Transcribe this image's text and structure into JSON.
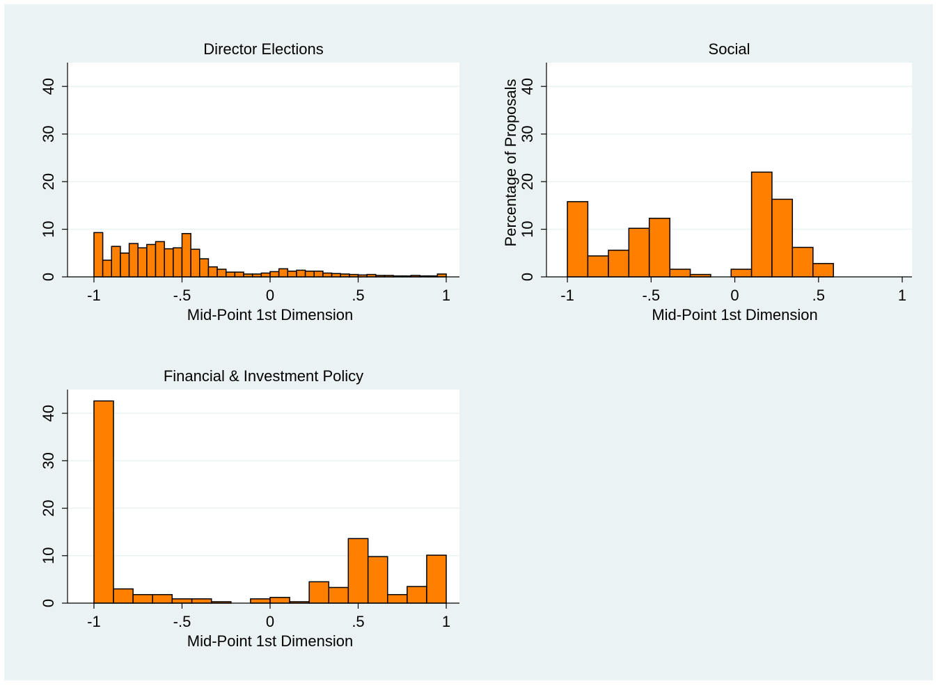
{
  "chart_data": [
    {
      "type": "histogram",
      "title": "Director Elections",
      "xlabel": "Mid-Point 1st Dimension",
      "color": "#ff8000",
      "grid": true,
      "bins": [
        -1,
        -0.95,
        -0.9,
        -0.85,
        -0.8,
        -0.75,
        -0.7,
        -0.65,
        -0.6,
        -0.55,
        -0.5,
        -0.45,
        -0.4,
        -0.35,
        -0.3,
        -0.25,
        -0.2,
        -0.15,
        -0.1,
        -0.05,
        0,
        0.05,
        0.1,
        0.15,
        0.2,
        0.25,
        0.3,
        0.35,
        0.4,
        0.45,
        0.5,
        0.55,
        0.6,
        0.65,
        0.7,
        0.75,
        0.8,
        0.85,
        0.9,
        0.95,
        1
      ],
      "values": [
        9.3,
        3.5,
        6.4,
        5.0,
        7.0,
        6.1,
        6.8,
        7.4,
        5.9,
        6.1,
        9.1,
        5.8,
        3.8,
        2.1,
        1.6,
        1.0,
        1.0,
        0.6,
        0.6,
        0.8,
        1.1,
        1.7,
        1.2,
        1.4,
        1.2,
        1.2,
        0.8,
        0.7,
        0.6,
        0.5,
        0.4,
        0.5,
        0.3,
        0.3,
        0.2,
        0.2,
        0.3,
        0.2,
        0.2,
        0.6
      ],
      "xlim": [
        -1.15,
        1.075
      ],
      "xticks": [
        -1,
        {
          "value": -0.5,
          "label": "-.5"
        },
        0,
        {
          "value": 0.5,
          "label": ".5"
        },
        1
      ],
      "ylim": [
        0,
        45
      ],
      "yticks": [
        0,
        10,
        20,
        30,
        40
      ]
    },
    {
      "type": "histogram",
      "title": "Social",
      "xlabel": "Mid-Point 1st Dimension",
      "ylabel": "Percentage of Proposals",
      "color": "#ff8000",
      "grid": true,
      "bins": [
        -1,
        -0.878,
        -0.755,
        -0.633,
        -0.511,
        -0.388,
        -0.266,
        -0.144,
        -0.022,
        0.1,
        0.222,
        0.344,
        0.467,
        0.589
      ],
      "values": [
        15.8,
        4.4,
        5.6,
        10.2,
        12.3,
        1.6,
        0.5,
        0,
        1.6,
        22.0,
        16.3,
        6.2,
        2.8
      ],
      "xlim": [
        -1.125,
        1.058
      ],
      "xticks": [
        -1,
        {
          "value": -0.5,
          "label": "-.5"
        },
        0,
        {
          "value": 0.5,
          "label": ".5"
        },
        1
      ],
      "ylim": [
        0,
        45
      ],
      "yticks": [
        0,
        10,
        20,
        30,
        40
      ]
    },
    {
      "type": "histogram",
      "title": "Financial & Investment Policy",
      "xlabel": "Mid-Point 1st Dimension",
      "color": "#ff8000",
      "grid": true,
      "bins": [
        -1,
        -0.889,
        -0.778,
        -0.667,
        -0.556,
        -0.444,
        -0.333,
        -0.222,
        -0.111,
        0,
        0.111,
        0.222,
        0.333,
        0.444,
        0.556,
        0.667,
        0.778,
        0.889,
        1
      ],
      "values": [
        42.6,
        3.0,
        1.8,
        1.8,
        0.9,
        0.9,
        0.3,
        0,
        0.9,
        1.2,
        0.3,
        4.5,
        3.3,
        13.6,
        9.8,
        1.8,
        3.5,
        10.1
      ],
      "xlim": [
        -1.15,
        1.075
      ],
      "xticks": [
        -1,
        {
          "value": -0.5,
          "label": "-.5"
        },
        0,
        {
          "value": 0.5,
          "label": ".5"
        },
        1
      ],
      "ylim": [
        0,
        45
      ],
      "yticks": [
        0,
        10,
        20,
        30,
        40
      ]
    }
  ]
}
